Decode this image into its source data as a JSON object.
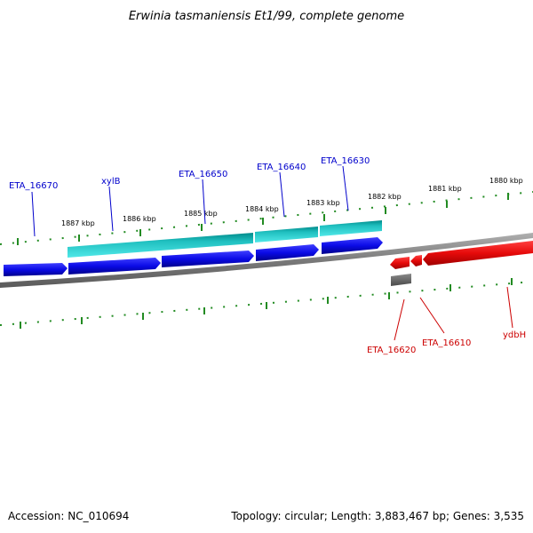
{
  "title": "Erwinia tasmaniensis Et1/99, complete genome",
  "footer": {
    "accession": "Accession: NC_010694",
    "summary": "Topology: circular; Length: 3,883,467 bp; Genes: 3,535"
  },
  "colors": {
    "forward_gene": "#0a0ae6",
    "forward_gene_dark": "#00008a",
    "reverse_gene": "#e60a0a",
    "reverse_gene_dark": "#a00000",
    "cds_cyan": "#1ad0d0",
    "cds_cyan_dark": "#008a8a",
    "pseudo_gray": "#6a6a6a",
    "backbone": "#808080",
    "tick_green": "#228b22",
    "label_blue": "#0000cc",
    "label_red": "#cc0000"
  },
  "scale_ticks": [
    {
      "label": "1887 kbp"
    },
    {
      "label": "1886 kbp"
    },
    {
      "label": "1885 kbp"
    },
    {
      "label": "1884 kbp"
    },
    {
      "label": "1883 kbp"
    },
    {
      "label": "1882 kbp"
    },
    {
      "label": "1881 kbp"
    },
    {
      "label": "1880 kbp"
    }
  ],
  "forward_labels": [
    "ETA_16670",
    "xylB",
    "ETA_16650",
    "ETA_16640",
    "ETA_16630"
  ],
  "reverse_labels": [
    "ETA_16620",
    "ETA_16610",
    "ydbH"
  ]
}
